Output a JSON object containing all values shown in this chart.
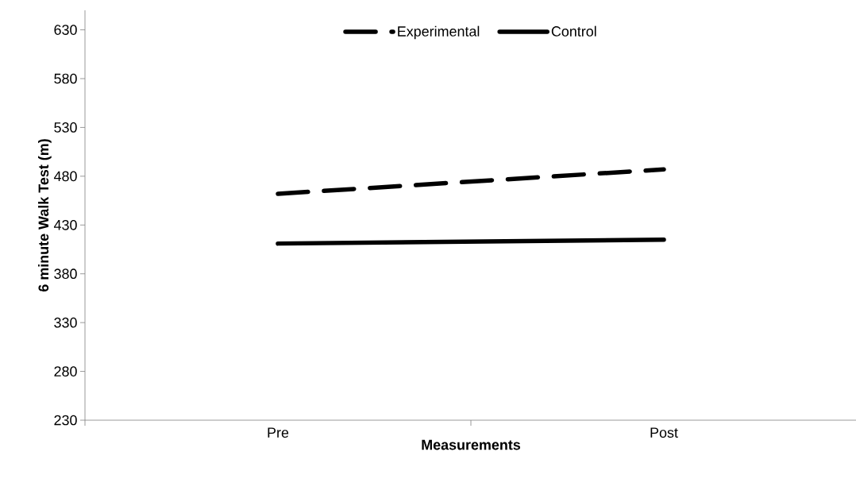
{
  "chart_data": {
    "type": "line",
    "xlabel": "Measurements",
    "ylabel": "6 minute Walk Test (m)",
    "categories": [
      "Pre",
      "Post"
    ],
    "series": [
      {
        "name": "Experimental",
        "color": "#000000",
        "values": [
          462,
          487
        ],
        "line_style": "dashed"
      },
      {
        "name": "Control",
        "color": "#000000",
        "values": [
          411,
          415
        ],
        "line_style": "solid"
      }
    ],
    "ylim": [
      230,
      650
    ],
    "yticks": [
      230,
      280,
      330,
      380,
      430,
      480,
      530,
      580,
      630
    ],
    "legend": "top",
    "grid": false,
    "marker": "none"
  }
}
